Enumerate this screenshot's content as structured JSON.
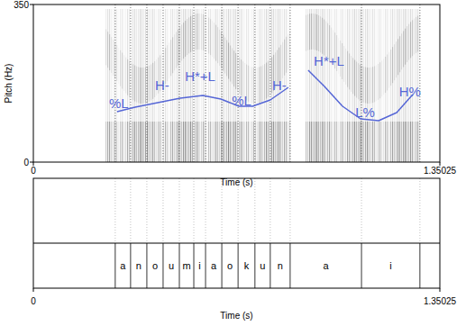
{
  "chart_data": {
    "type": "line",
    "y_label": "Pitch (Hz)",
    "x_label": "Time (s)",
    "xlim": [
      0,
      1.35025
    ],
    "xticks": [
      0,
      1.35025
    ],
    "ylim": [
      0,
      350
    ],
    "yticks": [
      0,
      350
    ],
    "grid": false,
    "series": [
      {
        "color": "#5566d6",
        "x": [
          0.278,
          0.338,
          0.413,
          0.488,
          0.563,
          0.623,
          0.683,
          0.728,
          0.787,
          0.847,
          0.877,
          0.913,
          0.967,
          1.027,
          1.087,
          1.147,
          1.207,
          1.26
        ],
        "values": [
          112,
          122,
          132,
          142,
          148,
          140,
          124,
          124,
          138,
          166,
          null,
          204,
          168,
          124,
          96,
          92,
          110,
          150
        ]
      }
    ],
    "annotations": [
      {
        "text": "%L",
        "x": 0.284,
        "y": 130
      },
      {
        "text": "H-",
        "x": 0.428,
        "y": 170
      },
      {
        "text": "H*+L",
        "x": 0.554,
        "y": 190
      },
      {
        "text": "%L",
        "x": 0.692,
        "y": 136
      },
      {
        "text": "H-",
        "x": 0.817,
        "y": 170
      },
      {
        "text": "H*+L",
        "x": 0.982,
        "y": 224
      },
      {
        "text": "L%",
        "x": 1.102,
        "y": 110
      },
      {
        "text": "H%",
        "x": 1.251,
        "y": 156
      }
    ],
    "segments": {
      "labels": [
        "a",
        "n",
        "o",
        "u",
        "m",
        "i",
        "a",
        "o",
        "k",
        "u",
        "n",
        "a",
        "i"
      ],
      "boundaries": [
        0.272,
        0.323,
        0.377,
        0.431,
        0.485,
        0.533,
        0.572,
        0.626,
        0.68,
        0.736,
        0.787,
        0.853,
        1.09,
        1.284
      ]
    }
  }
}
